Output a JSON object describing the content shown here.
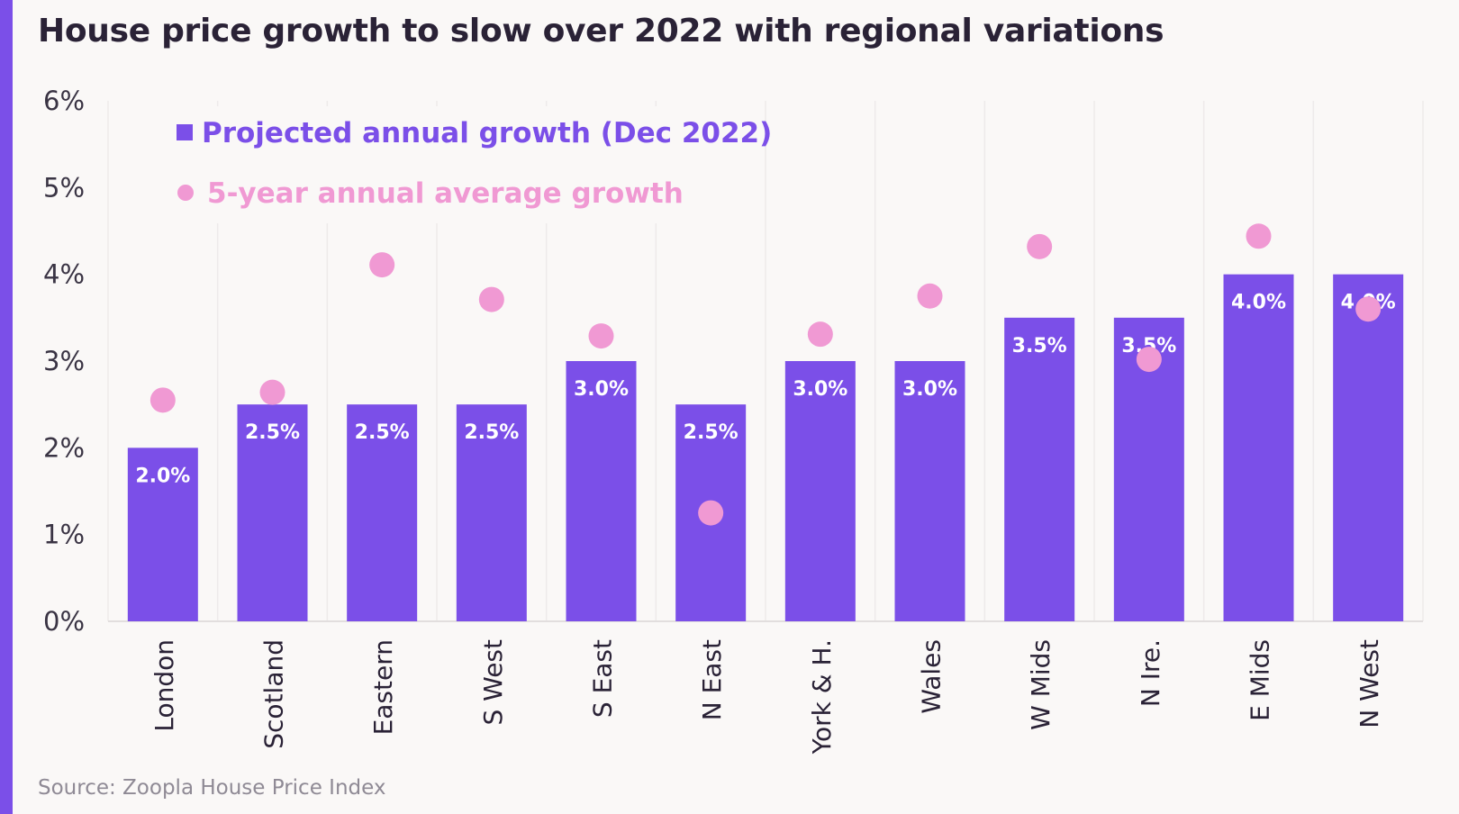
{
  "title": "House price growth to slow over 2022 with regional variations",
  "source": "Source: Zoopla House Price Index",
  "colors": {
    "bar": "#7b4fe8",
    "dot": "#f099d3",
    "accent": "#7b4fe8",
    "grid": "#eeeaea"
  },
  "chart_data": {
    "type": "bar",
    "title": "House price growth to slow over 2022 with regional variations",
    "categories": [
      "London",
      "Scotland",
      "Eastern",
      "S West",
      "S East",
      "N East",
      "York & H.",
      "Wales",
      "W Mids",
      "N Ire.",
      "E Mids",
      "N West"
    ],
    "series": [
      {
        "name": "Projected annual growth (Dec 2022)",
        "kind": "bar",
        "values": [
          2.0,
          2.5,
          2.5,
          2.5,
          3.0,
          2.5,
          3.0,
          3.0,
          3.5,
          3.5,
          4.0,
          4.0
        ],
        "labels": [
          "2.0%",
          "2.5%",
          "2.5%",
          "2.5%",
          "3.0%",
          "2.5%",
          "3.0%",
          "3.0%",
          "3.5%",
          "3.5%",
          "4.0%",
          "4.0%"
        ]
      },
      {
        "name": "5-year annual average growth",
        "kind": "scatter",
        "values": [
          2.55,
          2.64,
          4.11,
          3.71,
          3.29,
          1.25,
          3.31,
          3.75,
          4.32,
          3.02,
          4.44,
          3.6
        ]
      }
    ],
    "yticks": [
      "0%",
      "1%",
      "2%",
      "3%",
      "4%",
      "5%",
      "6%"
    ],
    "ylim": [
      0,
      6
    ],
    "grid": "vertical",
    "legend": "top-left"
  }
}
